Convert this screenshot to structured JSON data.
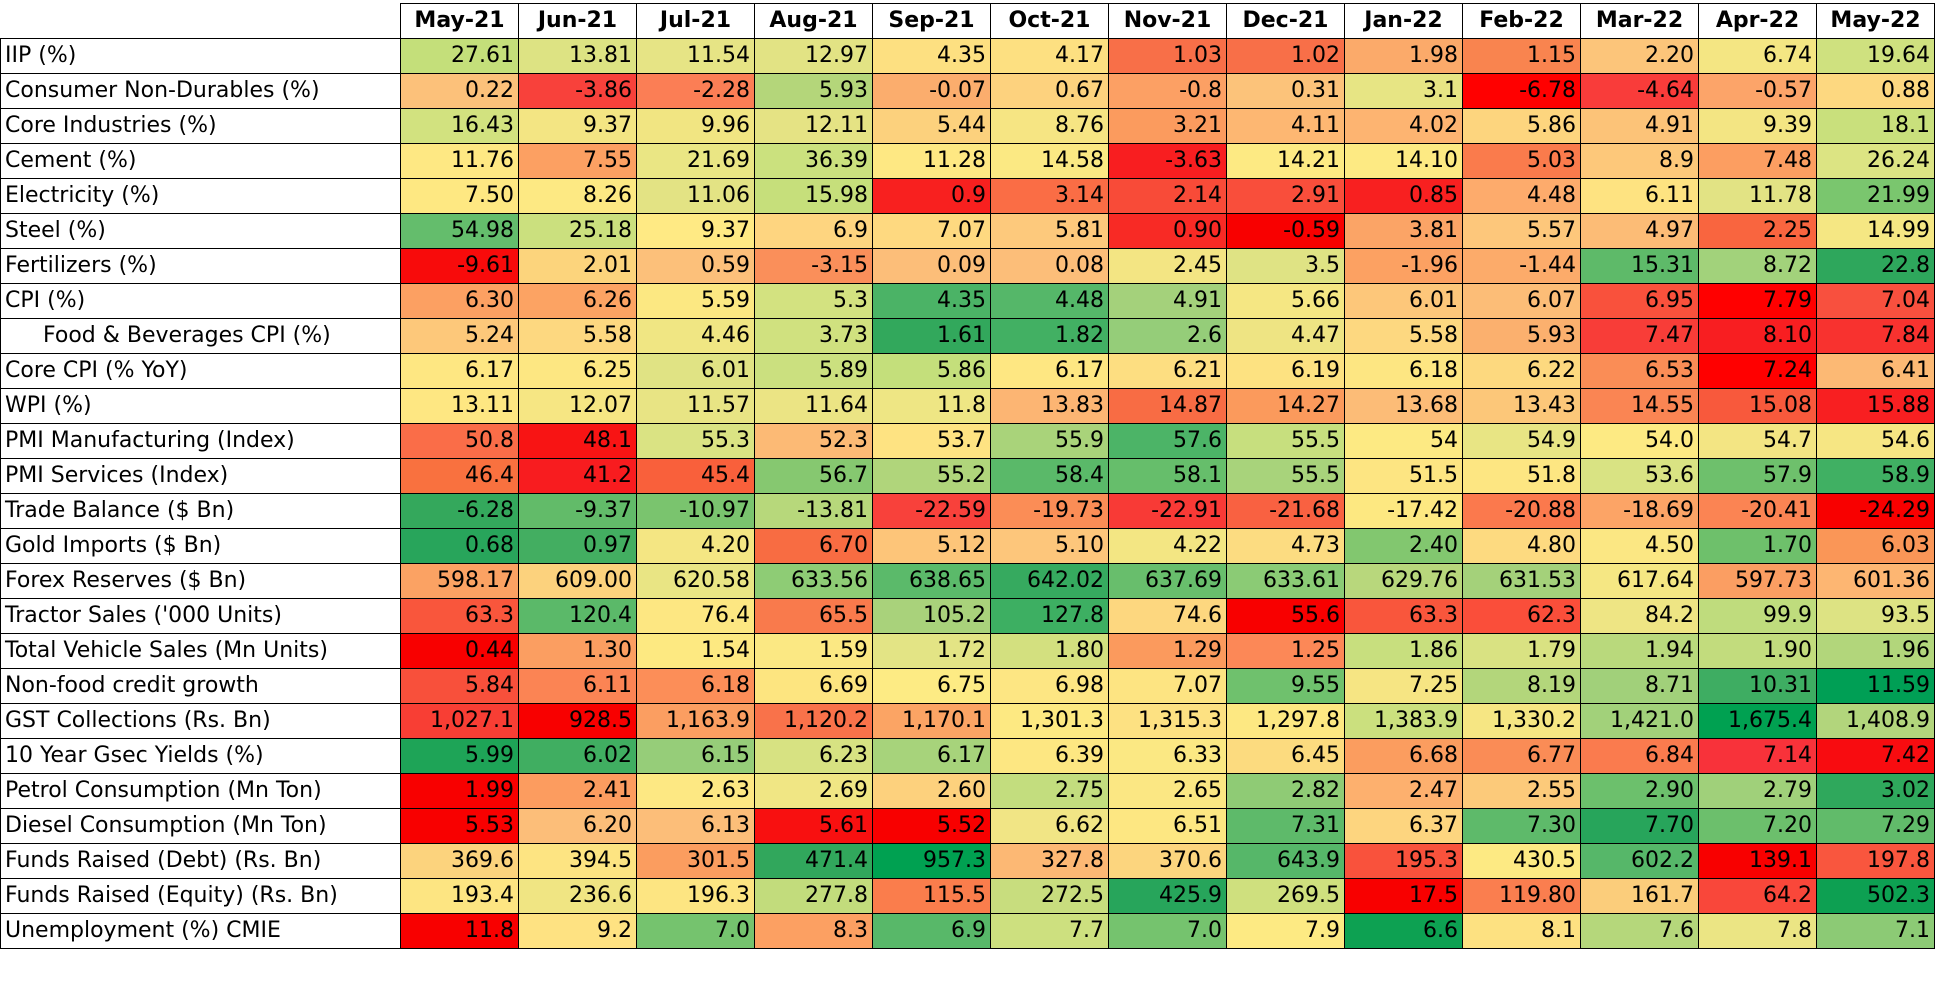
{
  "table": {
    "columns": [
      "May-21",
      "Jun-21",
      "Jul-21",
      "Aug-21",
      "Sep-21",
      "Oct-21",
      "Nov-21",
      "Dec-21",
      "Jan-22",
      "Feb-22",
      "Mar-22",
      "Apr-22",
      "May-22"
    ],
    "rows": [
      {
        "label": "IIP (%)",
        "values": [
          "27.61",
          "13.81",
          "11.54",
          "12.97",
          "4.35",
          "4.17",
          "1.03",
          "1.02",
          "1.98",
          "1.15",
          "2.20",
          "6.74",
          "19.64"
        ],
        "colors": [
          "#c4df7a",
          "#dde383",
          "#e6e485",
          "#e2e384",
          "#fde081",
          "#fde081",
          "#f86f48",
          "#f86f48",
          "#fbaa6a",
          "#f9844f",
          "#fcc57a",
          "#f4e683",
          "#cfe17f"
        ]
      },
      {
        "label": "Consumer Non-Durables (%)",
        "values": [
          "0.22",
          "-3.86",
          "-2.28",
          "5.93",
          "-0.07",
          "0.67",
          "-0.8",
          "0.31",
          "3.1",
          "-6.78",
          "-4.64",
          "-0.57",
          "0.88"
        ],
        "colors": [
          "#fcc17a",
          "#f8413b",
          "#fb7e55",
          "#b4d67a",
          "#fbad6d",
          "#fdd27e",
          "#fca064",
          "#fcc37a",
          "#e7e584",
          "#ff0000",
          "#f93c3a",
          "#fca469",
          "#fdd880"
        ]
      },
      {
        "label": "Core Industries (%)",
        "values": [
          "16.43",
          "9.37",
          "9.96",
          "12.11",
          "5.44",
          "8.76",
          "3.21",
          "4.11",
          "4.02",
          "5.86",
          "4.91",
          "9.39",
          "18.1"
        ],
        "colors": [
          "#d2e27f",
          "#f3e583",
          "#f1e582",
          "#e5e384",
          "#fcd17d",
          "#f6e583",
          "#fb9b5e",
          "#fdb772",
          "#fdb471",
          "#fdd57e",
          "#fcc378",
          "#f3e583",
          "#c9e07c"
        ]
      },
      {
        "label": "Cement (%)",
        "values": [
          "11.76",
          "7.55",
          "21.69",
          "36.39",
          "11.28",
          "14.58",
          "-3.63",
          "14.21",
          "14.10",
          "5.03",
          "8.9",
          "7.48",
          "26.24"
        ],
        "colors": [
          "#fee883",
          "#fca062",
          "#eae684",
          "#cbe17e",
          "#fee883",
          "#fbe983",
          "#f81e20",
          "#fdea83",
          "#fdea83",
          "#fa7b4c",
          "#fdc87a",
          "#fc9e61",
          "#dce483"
        ]
      },
      {
        "label": "Electricity (%)",
        "values": [
          "7.50",
          "8.26",
          "11.06",
          "15.98",
          "0.9",
          "3.14",
          "2.14",
          "2.91",
          "0.85",
          "4.48",
          "6.11",
          "11.78",
          "21.99"
        ],
        "colors": [
          "#fee882",
          "#fde983",
          "#e3e384",
          "#c6df7b",
          "#f8201f",
          "#fa6d45",
          "#f84b38",
          "#f94e3b",
          "#f82020",
          "#fdab6c",
          "#fee381",
          "#e2e384",
          "#7ac66e"
        ]
      },
      {
        "label": "Steel (%)",
        "values": [
          "54.98",
          "25.18",
          "9.37",
          "6.9",
          "7.07",
          "5.81",
          "0.90",
          "-0.59",
          "3.81",
          "5.57",
          "4.97",
          "2.25",
          "14.99"
        ],
        "colors": [
          "#64bd6c",
          "#cbe07e",
          "#ffea84",
          "#fed580",
          "#fed980",
          "#fdc97c",
          "#f82a25",
          "#f80000",
          "#fba466",
          "#fdc77b",
          "#fcbc76",
          "#f9653f",
          "#f5e783"
        ]
      },
      {
        "label": "Fertilizers (%)",
        "values": [
          "-9.61",
          "2.01",
          "0.59",
          "-3.15",
          "0.09",
          "0.08",
          "2.45",
          "3.5",
          "-1.96",
          "-1.44",
          "15.31",
          "8.72",
          "22.8"
        ],
        "colors": [
          "#f80b0b",
          "#fcd47c",
          "#fcc07a",
          "#fa8f5a",
          "#fcbe79",
          "#fcbe79",
          "#f3e583",
          "#dfe384",
          "#fca162",
          "#fcab6a",
          "#5eba69",
          "#a2d27b",
          "#2ea75c"
        ]
      },
      {
        "label": "CPI (%)",
        "values": [
          "6.30",
          "6.26",
          "5.59",
          "5.3",
          "4.35",
          "4.48",
          "4.91",
          "5.66",
          "6.01",
          "6.07",
          "6.95",
          "7.79",
          "7.04"
        ],
        "colors": [
          "#fca062",
          "#fca363",
          "#fce882",
          "#d3e280",
          "#4bb366",
          "#55b769",
          "#a4d17b",
          "#f5e783",
          "#fdc77a",
          "#fcbd77",
          "#f9513c",
          "#ff0000",
          "#f8503e"
        ]
      },
      {
        "label": "Food & Beverages CPI (%)",
        "values": [
          "5.24",
          "5.58",
          "4.46",
          "3.73",
          "1.61",
          "1.82",
          "2.6",
          "4.47",
          "5.58",
          "5.93",
          "7.47",
          "8.10",
          "7.84"
        ],
        "colors": [
          "#fdc87a",
          "#fdd880",
          "#f0e683",
          "#d0e17f",
          "#32a85c",
          "#42b063",
          "#95cd79",
          "#eee483",
          "#fdd880",
          "#fbb06e",
          "#f83d38",
          "#f81e21",
          "#f8322f"
        ]
      },
      {
        "label": "Core CPI (% YoY)",
        "values": [
          "6.17",
          "6.25",
          "6.01",
          "5.89",
          "5.86",
          "6.17",
          "6.21",
          "6.19",
          "6.18",
          "6.22",
          "6.53",
          "7.24",
          "6.41"
        ],
        "colors": [
          "#fee782",
          "#fde782",
          "#e0e384",
          "#cbe07f",
          "#c4df7b",
          "#fee782",
          "#fdde81",
          "#fde281",
          "#fde682",
          "#fdd97f",
          "#fa8d56",
          "#ff0000",
          "#fcb974"
        ]
      },
      {
        "label": "WPI (%)",
        "values": [
          "13.11",
          "12.07",
          "11.57",
          "11.64",
          "11.8",
          "13.83",
          "14.87",
          "14.27",
          "13.68",
          "13.43",
          "14.55",
          "15.08",
          "15.88"
        ],
        "colors": [
          "#fee782",
          "#f6e683",
          "#e8e484",
          "#ebe484",
          "#eee684",
          "#fcb573",
          "#f86c44",
          "#fb9a5c",
          "#fcbc77",
          "#fcc779",
          "#fa8553",
          "#f8593c",
          "#f81f21"
        ]
      },
      {
        "label": "PMI Manufacturing (Index)",
        "values": [
          "50.8",
          "48.1",
          "55.3",
          "52.3",
          "53.7",
          "55.9",
          "57.6",
          "55.5",
          "54",
          "54.9",
          "54.0",
          "54.7",
          "54.6"
        ],
        "colors": [
          "#fa6d48",
          "#f81414",
          "#daE383",
          "#fcba75",
          "#fee382",
          "#a9d37a",
          "#4cb467",
          "#c7df7e",
          "#fdea83",
          "#e8e584",
          "#fdea83",
          "#f3e583",
          "#f6e683"
        ]
      },
      {
        "label": "PMI Services (Index)",
        "values": [
          "46.4",
          "41.2",
          "45.4",
          "56.7",
          "55.2",
          "58.4",
          "58.1",
          "55.5",
          "51.5",
          "51.8",
          "53.6",
          "57.9",
          "58.9"
        ],
        "colors": [
          "#f9713f",
          "#f81c1f",
          "#f9603b",
          "#86c870",
          "#b0d57b",
          "#5ab969",
          "#66be6b",
          "#a8d37b",
          "#fde582",
          "#fde682",
          "#d9e383",
          "#6ec06c",
          "#40b063"
        ]
      },
      {
        "label": "Trade Balance ($ Bn)",
        "values": [
          "-6.28",
          "-9.37",
          "-10.97",
          "-13.81",
          "-22.59",
          "-19.73",
          "-22.91",
          "-21.68",
          "-17.42",
          "-20.88",
          "-18.69",
          "-20.41",
          "-24.29"
        ],
        "colors": [
          "#34a85c",
          "#62bb69",
          "#7ac46e",
          "#b7d87b",
          "#f8413b",
          "#fb8d56",
          "#f83a36",
          "#f96141",
          "#fde881",
          "#fb794d",
          "#fca466",
          "#fb8453",
          "#f80000"
        ]
      },
      {
        "label": "Gold Imports ($ Bn)",
        "values": [
          "0.68",
          "0.97",
          "4.20",
          "6.70",
          "5.12",
          "5.10",
          "4.22",
          "4.73",
          "2.40",
          "4.80",
          "4.50",
          "1.70",
          "6.03"
        ],
        "colors": [
          "#28a55b",
          "#43ae61",
          "#f4e683",
          "#f86c42",
          "#fdc579",
          "#fdc67b",
          "#f3e683",
          "#fcdc81",
          "#82c76f",
          "#fdda80",
          "#fbe783",
          "#6ec06b",
          "#fa9657"
        ]
      },
      {
        "label": "Forex Reserves ($ Bn)",
        "values": [
          "598.17",
          "609.00",
          "620.58",
          "633.56",
          "638.65",
          "642.02",
          "637.69",
          "633.61",
          "629.76",
          "631.53",
          "617.64",
          "597.73",
          "601.36"
        ],
        "colors": [
          "#fba263",
          "#fcd27d",
          "#e9e584",
          "#8ecc75",
          "#5bba6a",
          "#36aa5f",
          "#68be6c",
          "#8bcb75",
          "#b8d77c",
          "#a4d17a",
          "#f5e783",
          "#fb9e62",
          "#fdb672"
        ]
      },
      {
        "label": "Tractor Sales ('000 Units)",
        "values": [
          "63.3",
          "120.4",
          "76.4",
          "65.5",
          "105.2",
          "127.8",
          "74.6",
          "55.6",
          "63.3",
          "62.3",
          "84.2",
          "99.9",
          "93.5"
        ],
        "colors": [
          "#f9563c",
          "#5bb969",
          "#fde782",
          "#f97a4c",
          "#a9d27b",
          "#3daf62",
          "#fdd77f",
          "#f80000",
          "#f9563c",
          "#fa4e3a",
          "#eee584",
          "#bfdc7d",
          "#dde383"
        ]
      },
      {
        "label": "Total Vehicle Sales (Mn Units)",
        "values": [
          "0.44",
          "1.30",
          "1.54",
          "1.59",
          "1.72",
          "1.80",
          "1.29",
          "1.25",
          "1.86",
          "1.79",
          "1.94",
          "1.90",
          "1.96"
        ],
        "colors": [
          "#f80000",
          "#fb9e61",
          "#fde981",
          "#fbe883",
          "#e3e485",
          "#d3e07f",
          "#fb9a5d",
          "#fc8857",
          "#c8df7e",
          "#d9e282",
          "#b9d97c",
          "#c2dc7d",
          "#b2d67b"
        ]
      },
      {
        "label": "Non-food credit growth",
        "values": [
          "5.84",
          "6.11",
          "6.18",
          "6.69",
          "6.75",
          "6.98",
          "7.07",
          "9.55",
          "7.25",
          "8.19",
          "8.71",
          "10.31",
          "11.59"
        ],
        "colors": [
          "#f8503b",
          "#fb8454",
          "#fc8e58",
          "#fde580",
          "#fdeb84",
          "#fde683",
          "#fde482",
          "#6fc16d",
          "#f6e583",
          "#b3d67b",
          "#a1d07a",
          "#3ead62",
          "#009f55"
        ]
      },
      {
        "label": "GST Collections (Rs. Bn)",
        "values": [
          "1,027.1",
          "928.5",
          "1,163.9",
          "1,120.2",
          "1,170.1",
          "1,301.3",
          "1,315.3",
          "1,297.8",
          "1,383.9",
          "1,330.2",
          "1,421.0",
          "1,675.4",
          "1,408.9"
        ],
        "colors": [
          "#f83e34",
          "#f80000",
          "#fb9e61",
          "#f9724a",
          "#fba464",
          "#fde982",
          "#fde182",
          "#fde882",
          "#cbe07e",
          "#f6e683",
          "#a2d17a",
          "#00a151",
          "#b2d57c"
        ]
      },
      {
        "label": "10 Year Gsec Yields (%)",
        "values": [
          "5.99",
          "6.02",
          "6.15",
          "6.23",
          "6.17",
          "6.39",
          "6.33",
          "6.45",
          "6.68",
          "6.77",
          "6.84",
          "7.14",
          "7.42"
        ],
        "colors": [
          "#1ea457",
          "#40ae61",
          "#96cd79",
          "#d7e282",
          "#a7d37b",
          "#fde782",
          "#fbe883",
          "#fcdb7f",
          "#fb9d5f",
          "#fa8c56",
          "#fa7b4e",
          "#f8323a",
          "#f80c10"
        ]
      },
      {
        "label": "Petrol Consumption (Mn Ton)",
        "values": [
          "1.99",
          "2.41",
          "2.63",
          "2.69",
          "2.60",
          "2.75",
          "2.65",
          "2.82",
          "2.47",
          "2.55",
          "2.90",
          "2.79",
          "3.02"
        ],
        "colors": [
          "#f80000",
          "#fc9c5f",
          "#fde883",
          "#f0e684",
          "#fdd17d",
          "#c3dd7e",
          "#fbe783",
          "#8fcb75",
          "#fdb06e",
          "#fcca7a",
          "#6cc06c",
          "#a0d07a",
          "#2fa85c"
        ]
      },
      {
        "label": "Diesel Consumption (Mn Ton)",
        "values": [
          "5.53",
          "6.20",
          "6.13",
          "5.61",
          "5.52",
          "6.62",
          "6.51",
          "7.31",
          "6.37",
          "7.30",
          "7.70",
          "7.20",
          "7.29"
        ],
        "colors": [
          "#f80000",
          "#fcbe79",
          "#fcbe79",
          "#f81010",
          "#f80000",
          "#f1e585",
          "#fde782",
          "#5eba6a",
          "#fdd57f",
          "#5eba6a",
          "#27a55b",
          "#6cbf6c",
          "#61bb6a"
        ]
      },
      {
        "label": "Funds Raised (Debt) (Rs. Bn)",
        "values": [
          "369.6",
          "394.5",
          "301.5",
          "471.4",
          "957.3",
          "327.8",
          "370.6",
          "643.9",
          "195.3",
          "430.5",
          "602.2",
          "139.1",
          "197.8"
        ],
        "colors": [
          "#fcd37d",
          "#fde482",
          "#fb9d5f",
          "#31a75c",
          "#00a151",
          "#fcb874",
          "#fcd57e",
          "#56b769",
          "#f9523c",
          "#fdea83",
          "#56b769",
          "#f80000",
          "#f9563e"
        ]
      },
      {
        "label": "Funds Raised (Equity) (Rs. Bn)",
        "values": [
          "193.4",
          "236.6",
          "196.3",
          "277.8",
          "115.5",
          "272.5",
          "425.9",
          "269.5",
          "17.5",
          "119.80",
          "161.7",
          "64.2",
          "502.3"
        ],
        "colors": [
          "#fde582",
          "#f0e583",
          "#fde582",
          "#c2dc7c",
          "#fa7d4c",
          "#c8dd7e",
          "#27a55b",
          "#cfe07e",
          "#f80000",
          "#fa7e4f",
          "#fbcd7b",
          "#f9473a",
          "#0da052"
        ]
      },
      {
        "label": "Unemployment (%) CMIE",
        "values": [
          "11.8",
          "9.2",
          "7.0",
          "8.3",
          "6.9",
          "7.7",
          "7.0",
          "7.9",
          "6.6",
          "8.1",
          "7.6",
          "7.8",
          "7.1"
        ],
        "colors": [
          "#f80000",
          "#fee282",
          "#75c36e",
          "#fca062",
          "#58b869",
          "#cde07f",
          "#75c36e",
          "#fdea83",
          "#0da152",
          "#fde181",
          "#b5d77b",
          "#ebe584",
          "#8cca75"
        ]
      }
    ]
  }
}
